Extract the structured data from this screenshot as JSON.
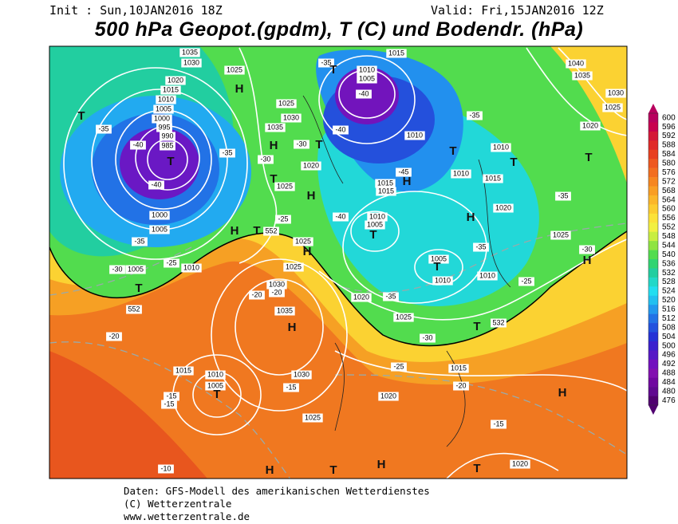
{
  "header": {
    "init": "Init : Sun,10JAN2016 18Z",
    "valid": "Valid: Fri,15JAN2016 12Z",
    "title": "500 hPa Geopot.(gpdm), T (C) und Bodendr. (hPa)"
  },
  "legend": {
    "values": [
      600,
      596,
      592,
      588,
      584,
      580,
      576,
      572,
      568,
      564,
      560,
      556,
      552,
      548,
      544,
      540,
      536,
      532,
      528,
      524,
      520,
      516,
      512,
      508,
      504,
      500,
      496,
      492,
      488,
      484,
      480,
      476
    ],
    "colors": [
      "#b8005e",
      "#c8004e",
      "#d41838",
      "#e02a28",
      "#e84020",
      "#ee5820",
      "#f26e20",
      "#f68620",
      "#f99e24",
      "#fbb62a",
      "#fccc30",
      "#fce238",
      "#f2f040",
      "#c8ee40",
      "#8ee442",
      "#52dc4e",
      "#30d472",
      "#22cea0",
      "#22d8c8",
      "#22def0",
      "#22c0f0",
      "#2298ee",
      "#2272e6",
      "#2252de",
      "#2432d6",
      "#3a20ce",
      "#5618c6",
      "#7210be",
      "#8210b0",
      "#7008a0",
      "#600890",
      "#500070"
    ]
  },
  "map": {
    "labels": [
      "1035",
      "1030",
      "1025",
      "1020",
      "1015",
      "1010",
      "1005",
      "1000",
      "995",
      "990",
      "985",
      "T",
      "1000",
      "1005",
      "1005",
      "1010",
      "T",
      "552",
      "-35",
      "-40",
      "-40",
      "-35",
      "-30",
      "-25",
      "-20",
      "T",
      "H",
      "1025",
      "1030",
      "1035",
      "H",
      "T",
      "-30",
      "1020",
      "-30",
      "-35",
      "T",
      "1025",
      "H",
      "-25",
      "H",
      "T",
      "552",
      "1025",
      "H",
      "1025",
      "1030",
      "-20",
      "-20",
      "1035",
      "H",
      "1015",
      "1010",
      "1005",
      "T",
      "-15",
      "-15",
      "1030",
      "-15",
      "1025",
      "-10",
      "H",
      "T",
      "H",
      "T",
      "1020",
      "1015",
      "-20",
      "-25",
      "-15",
      "1020",
      "H",
      "1010",
      "1005",
      "-40",
      "-35",
      "-40",
      "T",
      "1015",
      "1010",
      "T",
      "-35",
      "1010",
      "1010",
      "T",
      "1015",
      "H",
      "1015",
      "1015",
      "-45",
      "1020",
      "H",
      "1010",
      "1005",
      "T",
      "-40",
      "1005",
      "T",
      "1010",
      "-35",
      "1010",
      "-25",
      "1020",
      "-35",
      "1025",
      "532",
      "-30",
      "T",
      "1040",
      "1035",
      "1030",
      "1025",
      "1020",
      "T",
      "-35",
      "1025",
      "-30",
      "H"
    ]
  },
  "footer": {
    "source": "Daten: GFS-Modell des amerikanischen Wetterdienstes",
    "copyright": "(C) Wetterzentrale",
    "url": "www.wetterzentrale.de"
  }
}
